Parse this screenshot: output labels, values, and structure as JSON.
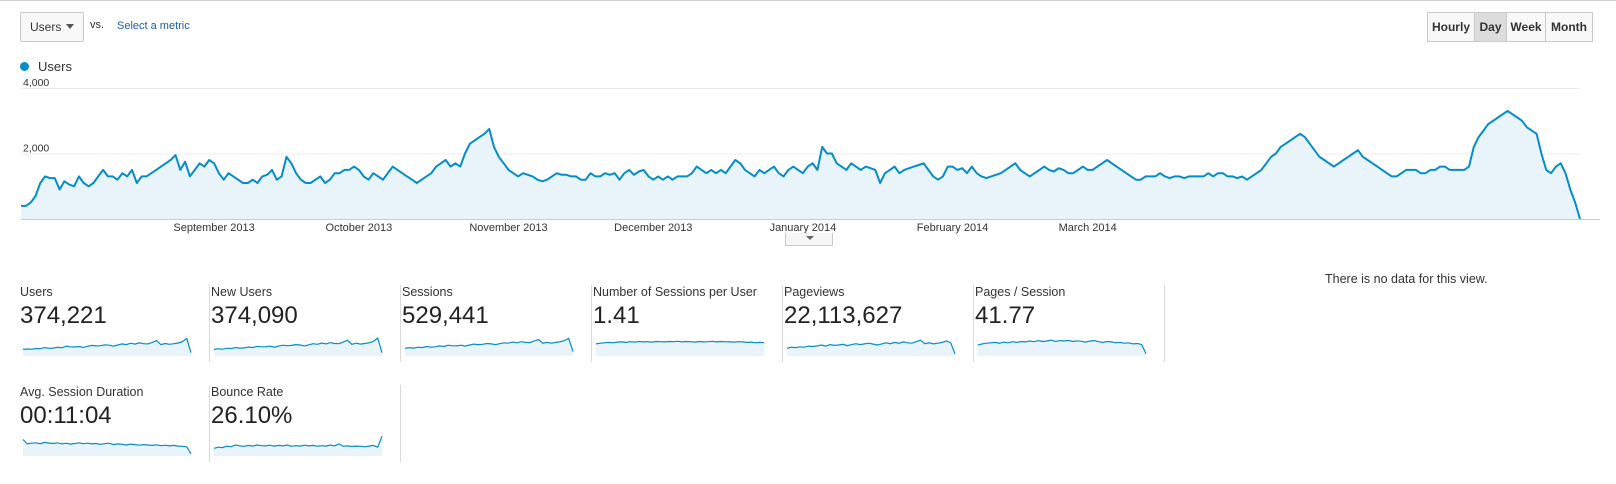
{
  "controls": {
    "metric_selector": "Users",
    "vs_label": "vs.",
    "select_metric_link": "Select a metric",
    "time_ranges": [
      {
        "label": "Hourly",
        "active": false
      },
      {
        "label": "Day",
        "active": true
      },
      {
        "label": "Week",
        "active": false
      },
      {
        "label": "Month",
        "active": false
      }
    ]
  },
  "legend": {
    "series_name": "Users",
    "color": "#058dc7"
  },
  "chart_data": {
    "type": "area",
    "series": [
      {
        "name": "Users",
        "color": "#058dc7",
        "values": [
          400,
          400,
          500,
          700,
          1100,
          1300,
          1250,
          1250,
          900,
          1150,
          1050,
          1000,
          1300,
          1100,
          1000,
          1100,
          1300,
          1500,
          1300,
          1300,
          1200,
          1400,
          1300,
          1500,
          1100,
          1300,
          1300,
          1400,
          1500,
          1600,
          1700,
          1800,
          1950,
          1500,
          1750,
          1300,
          1500,
          1700,
          1600,
          1800,
          1700,
          1400,
          1200,
          1400,
          1300,
          1200,
          1100,
          1100,
          1200,
          1100,
          1300,
          1350,
          1500,
          1200,
          1300,
          1900,
          1700,
          1400,
          1200,
          1100,
          1100,
          1200,
          1300,
          1100,
          1200,
          1400,
          1400,
          1500,
          1500,
          1600,
          1500,
          1300,
          1200,
          1400,
          1300,
          1200,
          1400,
          1600,
          1500,
          1400,
          1300,
          1200,
          1100,
          1200,
          1300,
          1400,
          1600,
          1700,
          1800,
          1600,
          1700,
          1600,
          2000,
          2300,
          2400,
          2500,
          2600,
          2750,
          2200,
          1900,
          1700,
          1500,
          1400,
          1300,
          1400,
          1350,
          1300,
          1200,
          1150,
          1200,
          1300,
          1400,
          1350,
          1350,
          1300,
          1300,
          1200,
          1200,
          1400,
          1300,
          1300,
          1400,
          1350,
          1400,
          1200,
          1400,
          1500,
          1350,
          1450,
          1500,
          1300,
          1200,
          1300,
          1200,
          1300,
          1200,
          1300,
          1300,
          1300,
          1400,
          1600,
          1500,
          1400,
          1500,
          1400,
          1500,
          1400,
          1600,
          1800,
          1700,
          1500,
          1400,
          1300,
          1500,
          1400,
          1500,
          1600,
          1400,
          1300,
          1500,
          1600,
          1500,
          1400,
          1600,
          1700,
          1500,
          2200,
          2000,
          2000,
          1700,
          1600,
          1500,
          1700,
          1600,
          1500,
          1600,
          1550,
          1500,
          1100,
          1400,
          1500,
          1600,
          1400,
          1500,
          1550,
          1600,
          1650,
          1700,
          1500,
          1300,
          1200,
          1300,
          1600,
          1600,
          1500,
          1550,
          1400,
          1600,
          1400,
          1300,
          1250,
          1300,
          1350,
          1400,
          1500,
          1600,
          1700,
          1500,
          1400,
          1300,
          1400,
          1500,
          1600,
          1500,
          1450,
          1550,
          1500,
          1400,
          1400,
          1500,
          1600,
          1500,
          1500,
          1600,
          1700,
          1800,
          1700,
          1600,
          1500,
          1400,
          1300,
          1200,
          1200,
          1300,
          1300,
          1300,
          1400,
          1300,
          1250,
          1300,
          1300,
          1250,
          1300,
          1300,
          1300,
          1300,
          1400,
          1300,
          1400,
          1400,
          1300,
          1300,
          1250,
          1300,
          1200,
          1300,
          1400,
          1500,
          1700,
          1900,
          2000,
          2200,
          2300,
          2400,
          2500,
          2600,
          2500,
          2300,
          2100,
          1900,
          1800,
          1700,
          1600,
          1700,
          1800,
          1900,
          2000,
          2100,
          1900,
          1800,
          1700,
          1600,
          1500,
          1400,
          1300,
          1300,
          1400,
          1500,
          1500,
          1500,
          1400,
          1400,
          1500,
          1500,
          1600,
          1600,
          1500,
          1500,
          1500,
          1500,
          1600,
          2200,
          2500,
          2700,
          2900,
          3000,
          3100,
          3200,
          3300,
          3200,
          3100,
          3000,
          2800,
          2700,
          2600,
          2000,
          1500,
          1400,
          1600,
          1700,
          1400,
          900,
          500,
          0
        ]
      }
    ],
    "ylim": [
      0,
      4000
    ],
    "y_ticks": [
      {
        "value": 2000,
        "label": "2,000"
      },
      {
        "value": 4000,
        "label": "4,000"
      }
    ],
    "x_ticks": [
      {
        "index": 40,
        "label": "September 2013"
      },
      {
        "index": 70,
        "label": "October 2013"
      },
      {
        "index": 101,
        "label": "November 2013"
      },
      {
        "index": 131,
        "label": "December 2013"
      },
      {
        "index": 162,
        "label": "January 2014"
      },
      {
        "index": 193,
        "label": "February 2014"
      },
      {
        "index": 221,
        "label": "March 2014"
      }
    ],
    "grid": true,
    "legend_position": "top-left",
    "colors": {
      "line": "#058dc7",
      "fill": "#e8f4fa"
    }
  },
  "scorecards": [
    {
      "label": "Users",
      "value": "374,221",
      "spark": [
        0.3,
        0.32,
        0.31,
        0.34,
        0.33,
        0.38,
        0.35,
        0.36,
        0.4,
        0.37,
        0.45,
        0.42,
        0.41,
        0.43,
        0.39,
        0.44,
        0.48,
        0.46,
        0.47,
        0.51,
        0.49,
        0.45,
        0.5,
        0.55,
        0.52,
        0.58,
        0.54,
        0.6,
        0.56,
        0.55,
        0.62,
        0.7,
        0.52,
        0.57,
        0.53,
        0.56,
        0.59,
        0.65,
        0.8,
        0.15
      ]
    },
    {
      "label": "New Users",
      "value": "374,090",
      "spark": [
        0.3,
        0.33,
        0.31,
        0.35,
        0.34,
        0.38,
        0.36,
        0.37,
        0.41,
        0.38,
        0.44,
        0.42,
        0.42,
        0.45,
        0.4,
        0.45,
        0.49,
        0.47,
        0.48,
        0.52,
        0.5,
        0.46,
        0.51,
        0.56,
        0.53,
        0.59,
        0.55,
        0.61,
        0.57,
        0.56,
        0.63,
        0.72,
        0.53,
        0.58,
        0.54,
        0.57,
        0.6,
        0.66,
        0.82,
        0.15
      ]
    },
    {
      "label": "Sessions",
      "value": "529,441",
      "spark": [
        0.35,
        0.38,
        0.36,
        0.4,
        0.38,
        0.43,
        0.4,
        0.42,
        0.46,
        0.43,
        0.49,
        0.47,
        0.46,
        0.49,
        0.45,
        0.5,
        0.54,
        0.52,
        0.53,
        0.57,
        0.55,
        0.52,
        0.56,
        0.6,
        0.58,
        0.63,
        0.6,
        0.65,
        0.62,
        0.61,
        0.68,
        0.75,
        0.58,
        0.62,
        0.58,
        0.62,
        0.65,
        0.7,
        0.8,
        0.2
      ]
    },
    {
      "label": "Number of Sessions per User",
      "value": "1.41",
      "spark": [
        0.55,
        0.58,
        0.6,
        0.62,
        0.6,
        0.63,
        0.64,
        0.62,
        0.65,
        0.63,
        0.66,
        0.64,
        0.65,
        0.63,
        0.66,
        0.65,
        0.64,
        0.66,
        0.65,
        0.67,
        0.64,
        0.66,
        0.65,
        0.63,
        0.66,
        0.64,
        0.65,
        0.67,
        0.64,
        0.66,
        0.65,
        0.64,
        0.63,
        0.65,
        0.64,
        0.62,
        0.63,
        0.6,
        0.62,
        0.61
      ]
    },
    {
      "label": "Pageviews",
      "value": "22,113,627",
      "spark": [
        0.35,
        0.4,
        0.38,
        0.42,
        0.4,
        0.45,
        0.43,
        0.46,
        0.5,
        0.45,
        0.52,
        0.48,
        0.5,
        0.53,
        0.47,
        0.52,
        0.56,
        0.52,
        0.55,
        0.58,
        0.54,
        0.5,
        0.55,
        0.6,
        0.56,
        0.62,
        0.58,
        0.64,
        0.6,
        0.58,
        0.65,
        0.72,
        0.56,
        0.6,
        0.55,
        0.58,
        0.62,
        0.68,
        0.6,
        0.1
      ]
    },
    {
      "label": "Pages / Session",
      "value": "41.77",
      "spark": [
        0.5,
        0.55,
        0.58,
        0.6,
        0.62,
        0.58,
        0.63,
        0.6,
        0.65,
        0.62,
        0.66,
        0.64,
        0.68,
        0.65,
        0.7,
        0.66,
        0.68,
        0.72,
        0.66,
        0.7,
        0.68,
        0.71,
        0.66,
        0.69,
        0.67,
        0.63,
        0.68,
        0.7,
        0.65,
        0.62,
        0.66,
        0.64,
        0.6,
        0.62,
        0.58,
        0.6,
        0.55,
        0.57,
        0.52,
        0.1
      ]
    },
    {
      "label": "Avg. Session Duration",
      "value": "00:11:04",
      "spark": [
        0.75,
        0.55,
        0.58,
        0.6,
        0.56,
        0.62,
        0.59,
        0.57,
        0.6,
        0.55,
        0.58,
        0.54,
        0.57,
        0.6,
        0.56,
        0.58,
        0.55,
        0.57,
        0.53,
        0.56,
        0.58,
        0.52,
        0.55,
        0.53,
        0.5,
        0.54,
        0.52,
        0.49,
        0.52,
        0.5,
        0.48,
        0.51,
        0.47,
        0.49,
        0.46,
        0.48,
        0.45,
        0.44,
        0.42,
        0.1
      ]
    },
    {
      "label": "Bounce Rate",
      "value": "26.10%",
      "spark": [
        0.35,
        0.4,
        0.38,
        0.45,
        0.42,
        0.5,
        0.46,
        0.44,
        0.48,
        0.45,
        0.5,
        0.47,
        0.46,
        0.49,
        0.45,
        0.48,
        0.46,
        0.5,
        0.44,
        0.47,
        0.45,
        0.49,
        0.46,
        0.48,
        0.44,
        0.47,
        0.45,
        0.5,
        0.46,
        0.55,
        0.44,
        0.46,
        0.43,
        0.45,
        0.44,
        0.42,
        0.45,
        0.48,
        0.4,
        0.9
      ]
    }
  ],
  "empty_panel": {
    "message": "There is no data for this view."
  }
}
